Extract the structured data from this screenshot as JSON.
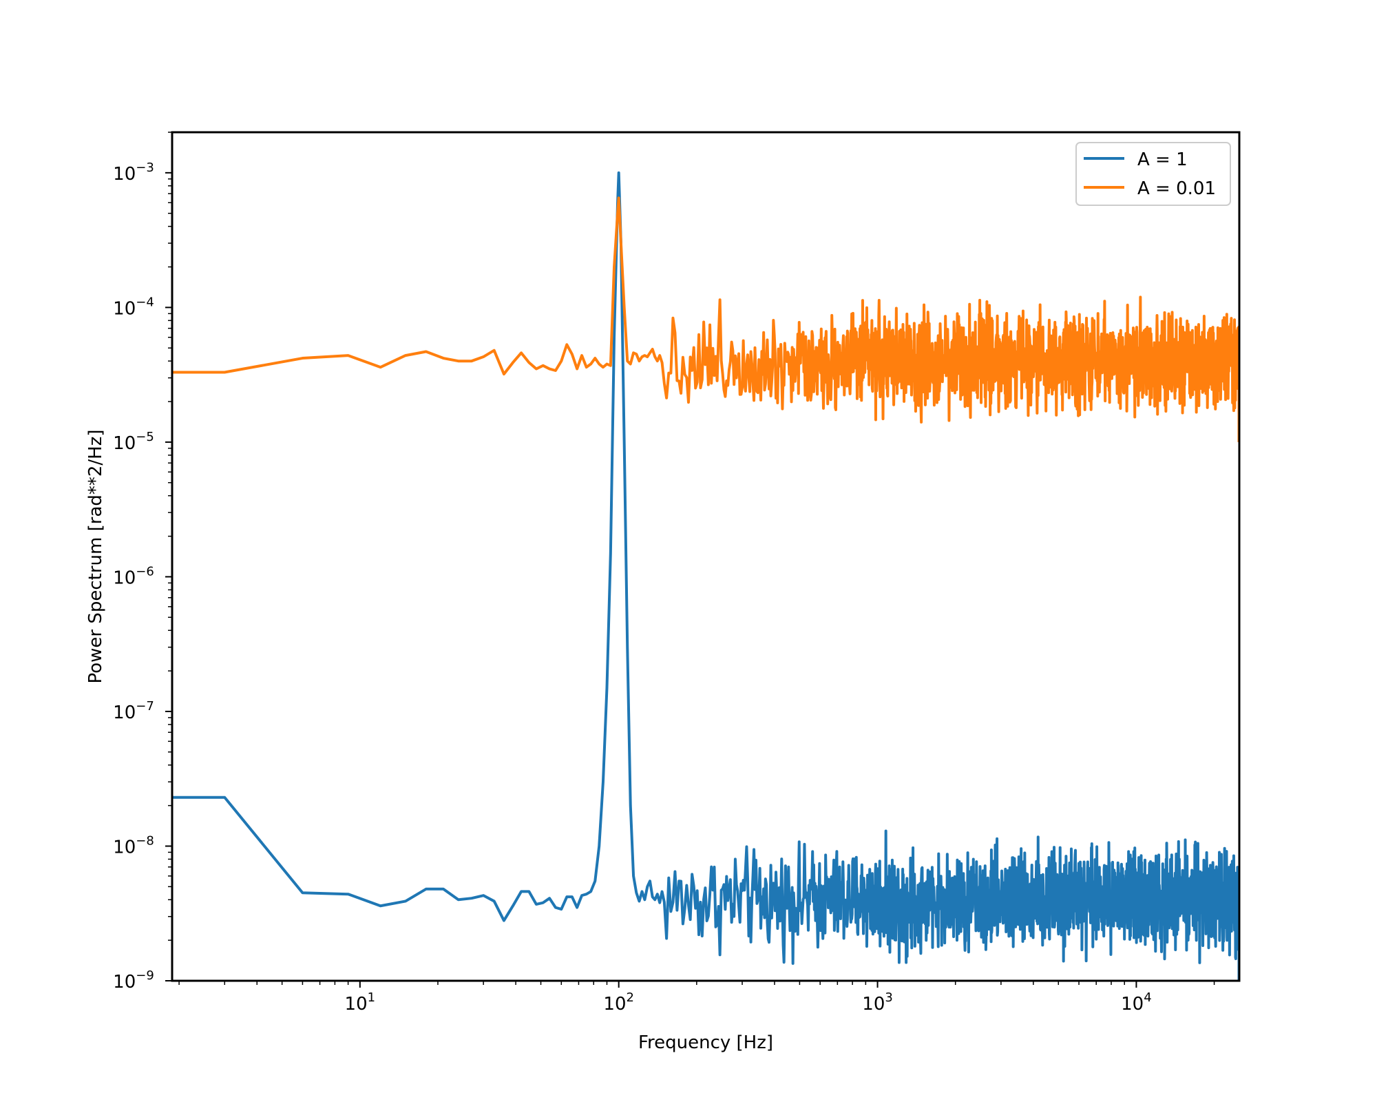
{
  "chart_data": {
    "type": "line",
    "title": "",
    "xlabel": "Frequency [Hz]",
    "ylabel": "Power Spectrum [rad**2/Hz]",
    "xscale": "log",
    "yscale": "log",
    "xlim": [
      1.88,
      25000
    ],
    "ylim": [
      1e-09,
      0.002
    ],
    "grid": false,
    "legend_position": "upper right",
    "x_ticks": [
      {
        "value": 10,
        "label_base": "10",
        "label_exp": "1"
      },
      {
        "value": 100,
        "label_base": "10",
        "label_exp": "2"
      },
      {
        "value": 1000,
        "label_base": "10",
        "label_exp": "3"
      },
      {
        "value": 10000,
        "label_base": "10",
        "label_exp": "4"
      }
    ],
    "y_ticks": [
      {
        "value": 1e-09,
        "label_base": "10",
        "label_exp": "−9"
      },
      {
        "value": 1e-08,
        "label_base": "10",
        "label_exp": "−8"
      },
      {
        "value": 1e-07,
        "label_base": "10",
        "label_exp": "−7"
      },
      {
        "value": 1e-06,
        "label_base": "10",
        "label_exp": "−6"
      },
      {
        "value": 1e-05,
        "label_base": "10",
        "label_exp": "−5"
      },
      {
        "value": 0.0001,
        "label_base": "10",
        "label_exp": "−4"
      },
      {
        "value": 0.001,
        "label_base": "10",
        "label_exp": "−3"
      }
    ],
    "series": [
      {
        "name": "A = 1",
        "color": "#1f77b4",
        "peak": {
          "x": 100,
          "y": 0.001
        },
        "noise_floor": 4e-09,
        "end_value": 1e-09,
        "low_freq_points": [
          [
            1.88,
            2.3e-08
          ],
          [
            3.0,
            2.3e-08
          ],
          [
            6.0,
            4.5e-09
          ],
          [
            9.0,
            4.4e-09
          ],
          [
            12.0,
            3.6e-09
          ],
          [
            15.0,
            3.9e-09
          ],
          [
            18.0,
            4.8e-09
          ],
          [
            21.0,
            4.8e-09
          ],
          [
            24.0,
            4e-09
          ],
          [
            27.0,
            4.1e-09
          ],
          [
            30.0,
            4.3e-09
          ],
          [
            33.0,
            3.9e-09
          ],
          [
            36.0,
            2.8e-09
          ],
          [
            39.0,
            3.6e-09
          ],
          [
            42.0,
            4.6e-09
          ],
          [
            45.0,
            4.6e-09
          ],
          [
            48.0,
            3.7e-09
          ],
          [
            51.0,
            3.8e-09
          ],
          [
            54.0,
            4.1e-09
          ],
          [
            57.0,
            3.5e-09
          ],
          [
            60.0,
            3.4e-09
          ],
          [
            63.0,
            4.2e-09
          ],
          [
            66.0,
            4.2e-09
          ],
          [
            69.0,
            3.5e-09
          ],
          [
            72.0,
            4.3e-09
          ],
          [
            75.0,
            4.4e-09
          ],
          [
            78.0,
            4.6e-09
          ],
          [
            81.0,
            5.5e-09
          ],
          [
            84.0,
            1e-08
          ],
          [
            87.0,
            3e-08
          ],
          [
            90.0,
            1.5e-07
          ],
          [
            93.0,
            1.5e-06
          ],
          [
            96.0,
            6e-05
          ],
          [
            99.0,
            0.0006
          ],
          [
            100.0,
            0.001
          ],
          [
            102.0,
            0.0003
          ],
          [
            105.0,
            1e-05
          ],
          [
            108.0,
            3e-07
          ],
          [
            111.0,
            2e-08
          ],
          [
            114.0,
            6e-09
          ],
          [
            117.0,
            4.5e-09
          ],
          [
            120.0,
            3.9e-09
          ],
          [
            123.0,
            4.6e-09
          ],
          [
            126.0,
            4e-09
          ],
          [
            129.0,
            5e-09
          ],
          [
            132.0,
            5.5e-09
          ],
          [
            135.0,
            4.2e-09
          ],
          [
            138.0,
            4e-09
          ],
          [
            141.0,
            4.4e-09
          ],
          [
            144.0,
            3.8e-09
          ]
        ]
      },
      {
        "name": "A = 0.01",
        "color": "#ff7f0e",
        "peak": {
          "x": 100,
          "y": 0.00065
        },
        "noise_floor": 4e-05,
        "end_value": 1e-05,
        "low_freq_points": [
          [
            1.88,
            3.3e-05
          ],
          [
            3.0,
            3.3e-05
          ],
          [
            6.0,
            4.2e-05
          ],
          [
            9.0,
            4.4e-05
          ],
          [
            12.0,
            3.6e-05
          ],
          [
            15.0,
            4.4e-05
          ],
          [
            18.0,
            4.7e-05
          ],
          [
            21.0,
            4.2e-05
          ],
          [
            24.0,
            4e-05
          ],
          [
            27.0,
            4e-05
          ],
          [
            30.0,
            4.3e-05
          ],
          [
            33.0,
            4.8e-05
          ],
          [
            36.0,
            3.2e-05
          ],
          [
            39.0,
            3.9e-05
          ],
          [
            42.0,
            4.6e-05
          ],
          [
            45.0,
            3.9e-05
          ],
          [
            48.0,
            3.5e-05
          ],
          [
            51.0,
            3.7e-05
          ],
          [
            54.0,
            3.5e-05
          ],
          [
            57.0,
            3.4e-05
          ],
          [
            60.0,
            4e-05
          ],
          [
            63.0,
            5.3e-05
          ],
          [
            66.0,
            4.5e-05
          ],
          [
            69.0,
            3.5e-05
          ],
          [
            72.0,
            4.4e-05
          ],
          [
            75.0,
            3.6e-05
          ],
          [
            78.0,
            3.8e-05
          ],
          [
            81.0,
            4.2e-05
          ],
          [
            84.0,
            3.8e-05
          ],
          [
            87.0,
            3.6e-05
          ],
          [
            90.0,
            3.8e-05
          ],
          [
            93.0,
            3.7e-05
          ],
          [
            96.0,
            0.0002
          ],
          [
            99.0,
            0.0005
          ],
          [
            100.0,
            0.00065
          ],
          [
            102.0,
            0.0003
          ],
          [
            105.0,
            0.0001
          ],
          [
            108.0,
            4e-05
          ],
          [
            111.0,
            3.8e-05
          ],
          [
            114.0,
            4.6e-05
          ],
          [
            117.0,
            4.5e-05
          ],
          [
            120.0,
            4e-05
          ],
          [
            123.0,
            4.3e-05
          ],
          [
            126.0,
            4.4e-05
          ],
          [
            129.0,
            4.3e-05
          ],
          [
            132.0,
            4.6e-05
          ],
          [
            135.0,
            4.9e-05
          ],
          [
            138.0,
            4.3e-05
          ],
          [
            141.0,
            4e-05
          ],
          [
            144.0,
            4.4e-05
          ]
        ]
      }
    ]
  },
  "legend": {
    "items": [
      {
        "label": "A = 1",
        "color": "#1f77b4"
      },
      {
        "label": "A = 0.01",
        "color": "#ff7f0e"
      }
    ]
  }
}
